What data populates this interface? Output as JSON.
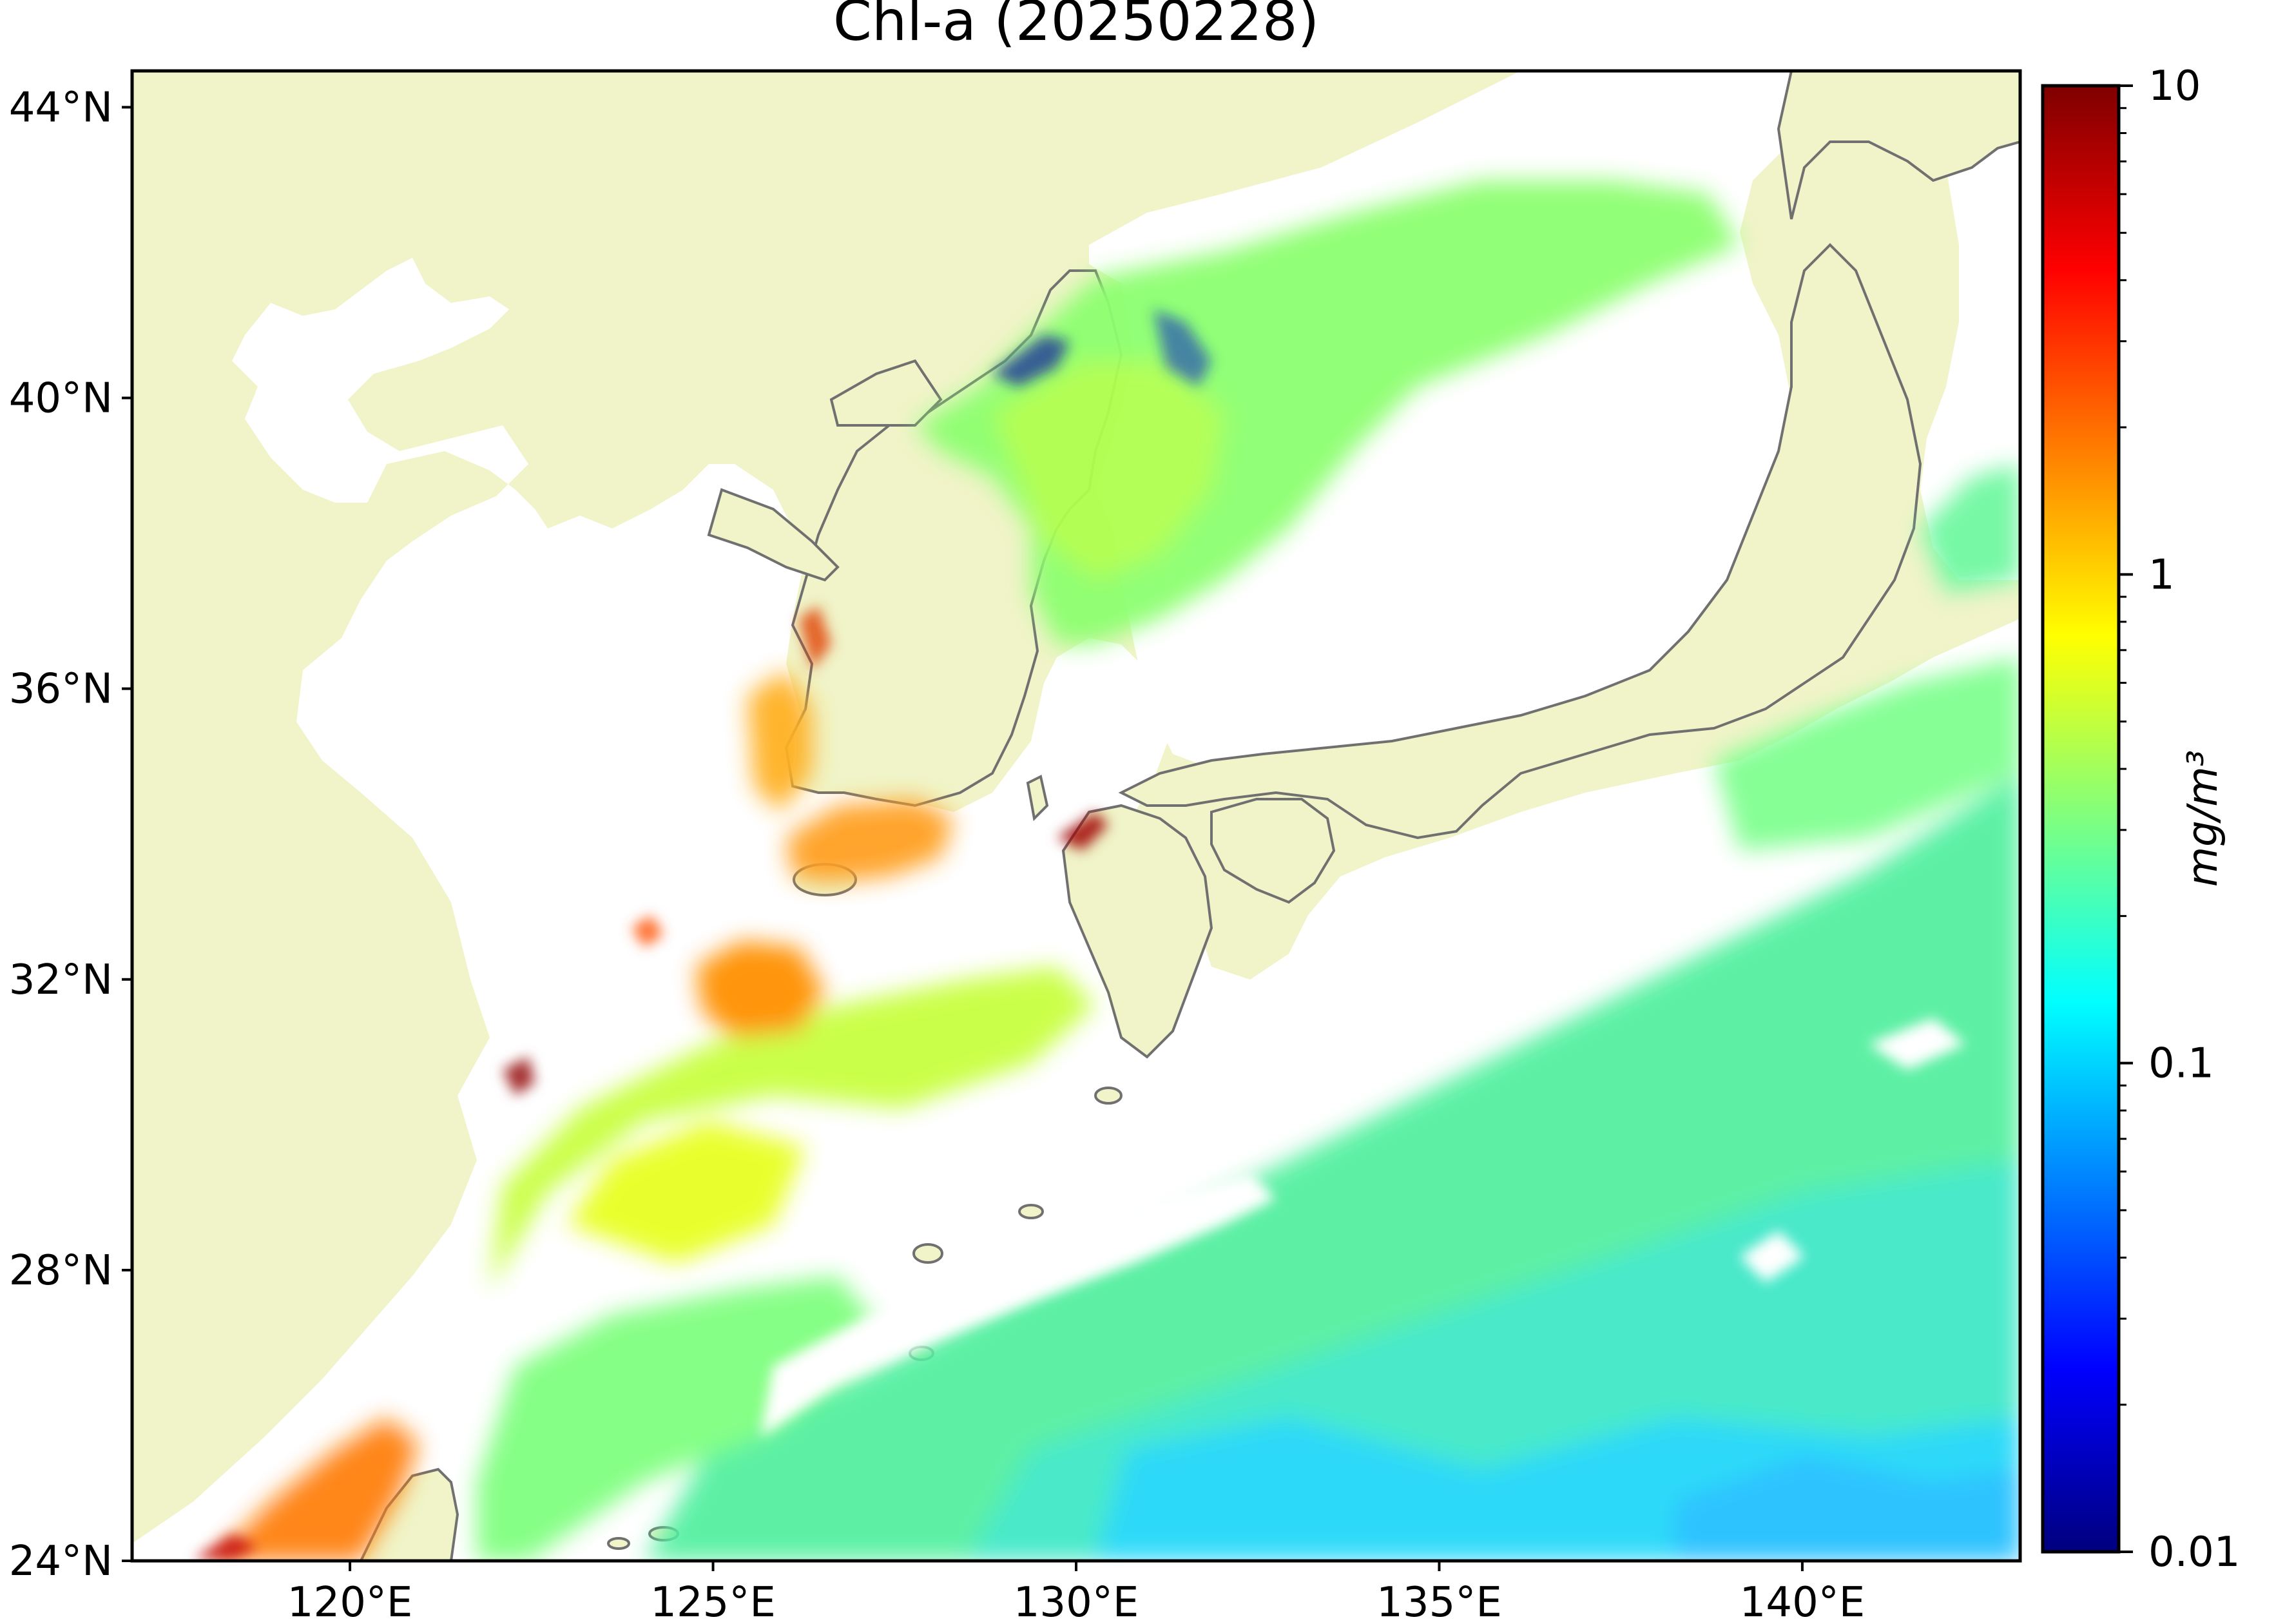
{
  "title": "Chl-a (20250228)",
  "map": {
    "lat_ticks": [
      "44°N",
      "40°N",
      "36°N",
      "32°N",
      "28°N",
      "24°N"
    ],
    "lon_ticks": [
      "120°E",
      "125°E",
      "130°E",
      "135°E",
      "140°E"
    ],
    "lat_range": [
      24,
      44.5
    ],
    "lon_range": [
      117,
      143
    ],
    "colors": {
      "land": "#f0f4c8",
      "coastline": "#707070",
      "no_data": "#ffffff"
    }
  },
  "colorbar": {
    "label": "mg/m³",
    "scale": "log",
    "tick_labels": [
      "10",
      "1",
      "0.1",
      "0.01"
    ],
    "tick_values": [
      10,
      1,
      0.1,
      0.01
    ],
    "colormap": "jet",
    "colormap_colors": [
      "#00007f",
      "#0000ff",
      "#007fff",
      "#00ffff",
      "#7fff7f",
      "#ffff00",
      "#ff7f00",
      "#ff0000",
      "#7f0000"
    ]
  }
}
